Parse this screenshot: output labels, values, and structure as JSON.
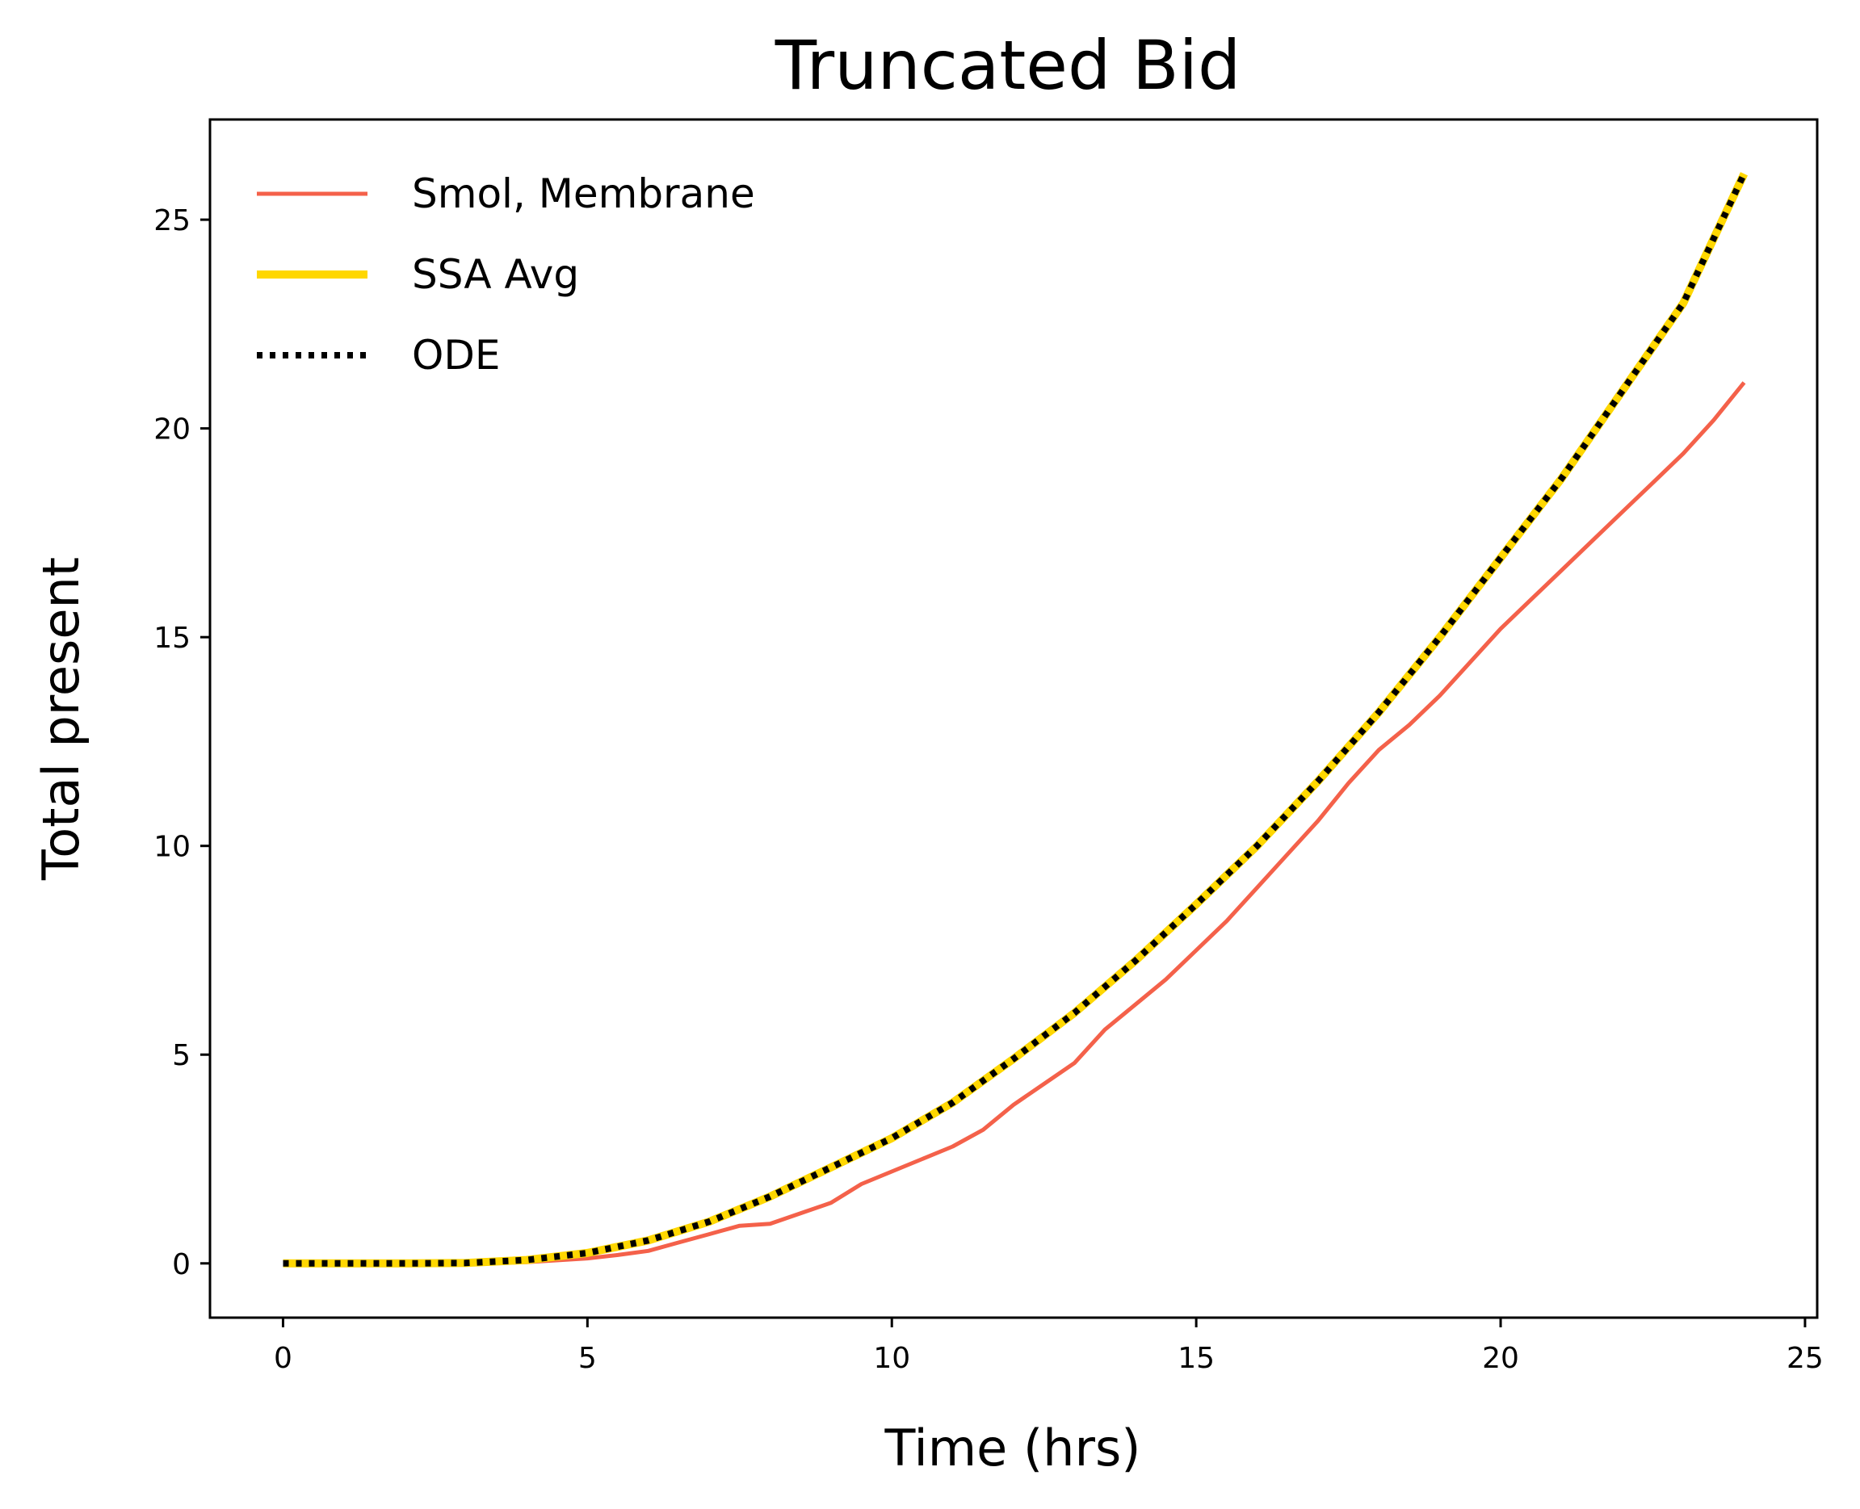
{
  "chart_data": {
    "type": "line",
    "title": "Truncated Bid",
    "xlabel": "Time (hrs)",
    "ylabel": "Total present",
    "xlim": [
      -1.2,
      25.2
    ],
    "ylim": [
      -1.3,
      27.4
    ],
    "x_ticks": [
      0,
      5,
      10,
      15,
      20,
      25
    ],
    "y_ticks": [
      0,
      5,
      10,
      15,
      20,
      25
    ],
    "x_tick_labels": [
      "0",
      "5",
      "10",
      "15",
      "20",
      "25"
    ],
    "y_tick_labels": [
      "0",
      "5",
      "10",
      "15",
      "20",
      "25"
    ],
    "grid": false,
    "legend_position": "top-left",
    "series": [
      {
        "name": "Smol, Membrane",
        "color": "#f4614a",
        "style": "solid",
        "x": [
          0,
          1,
          2,
          3,
          4,
          5,
          5.5,
          6,
          6.5,
          7,
          7.5,
          8,
          8.5,
          9,
          9.5,
          10,
          10.5,
          11,
          11.5,
          12,
          12.5,
          13,
          13.5,
          14,
          14.5,
          15,
          15.5,
          16,
          16.5,
          17,
          17.5,
          18,
          18.5,
          19,
          19.5,
          20,
          20.5,
          21,
          21.5,
          22,
          22.5,
          23,
          23.5,
          24
        ],
        "y": [
          0,
          0,
          0,
          0,
          0.03,
          0.12,
          0.2,
          0.3,
          0.5,
          0.7,
          0.9,
          0.95,
          1.2,
          1.45,
          1.9,
          2.2,
          2.5,
          2.8,
          3.2,
          3.8,
          4.3,
          4.8,
          5.6,
          6.2,
          6.8,
          7.5,
          8.2,
          9.0,
          9.8,
          10.6,
          11.5,
          12.3,
          12.9,
          13.6,
          14.4,
          15.2,
          15.9,
          16.6,
          17.3,
          18.0,
          18.7,
          19.4,
          20.2,
          21.1
        ]
      },
      {
        "name": "SSA Avg",
        "color": "#ffd700",
        "style": "solid",
        "x": [
          0,
          1,
          2,
          3,
          4,
          5,
          6,
          7,
          8,
          9,
          10,
          11,
          12,
          13,
          14,
          15,
          16,
          17,
          18,
          19,
          20,
          21,
          22,
          23,
          24
        ],
        "y": [
          0,
          0,
          0,
          0.01,
          0.08,
          0.25,
          0.55,
          1.0,
          1.6,
          2.3,
          3.0,
          3.85,
          4.9,
          6.0,
          7.25,
          8.6,
          10.0,
          11.55,
          13.2,
          15.0,
          16.9,
          18.8,
          20.9,
          23.0,
          26.1
        ]
      },
      {
        "name": "ODE",
        "color": "#000000",
        "style": "dotted",
        "x": [
          0,
          1,
          2,
          3,
          4,
          5,
          6,
          7,
          8,
          9,
          10,
          11,
          12,
          13,
          14,
          15,
          16,
          17,
          18,
          19,
          20,
          21,
          22,
          23,
          24
        ],
        "y": [
          0,
          0,
          0,
          0.01,
          0.08,
          0.25,
          0.55,
          1.0,
          1.6,
          2.3,
          3.0,
          3.85,
          4.9,
          6.0,
          7.25,
          8.6,
          10.0,
          11.55,
          13.2,
          15.0,
          16.9,
          18.8,
          20.9,
          23.0,
          26.1
        ]
      }
    ]
  }
}
